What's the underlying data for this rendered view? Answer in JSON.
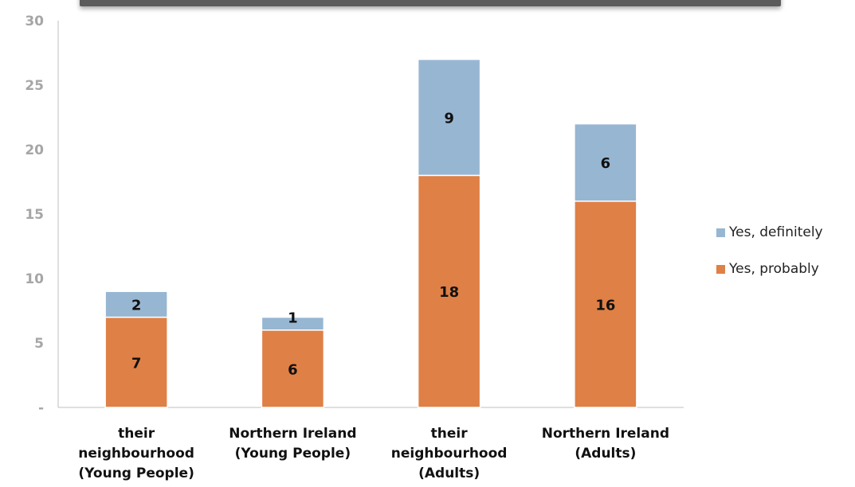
{
  "chart_data": {
    "type": "bar",
    "stacked": true,
    "categories": [
      [
        "their",
        "neighbourhood",
        "(Young People)"
      ],
      [
        "Northern Ireland",
        "(Young People)"
      ],
      [
        "their",
        "neighbourhood",
        "(Adults)"
      ],
      [
        "Northern Ireland",
        "(Adults)"
      ]
    ],
    "series": [
      {
        "name": "Yes, probably",
        "values": [
          7,
          6,
          18,
          16
        ],
        "color": "#df8046"
      },
      {
        "name": "Yes, definitely",
        "values": [
          2,
          1,
          9,
          6
        ],
        "color": "#97b6d2"
      }
    ],
    "ylim": [
      0,
      30
    ],
    "yticks": [
      0,
      5,
      10,
      15,
      20,
      25,
      30
    ],
    "ytick_labels": [
      "-",
      "5",
      "10",
      "15",
      "20",
      "25",
      "30"
    ],
    "grid": false,
    "legend_position": "right",
    "legend_order": [
      "Yes, definitely",
      "Yes, probably"
    ]
  }
}
